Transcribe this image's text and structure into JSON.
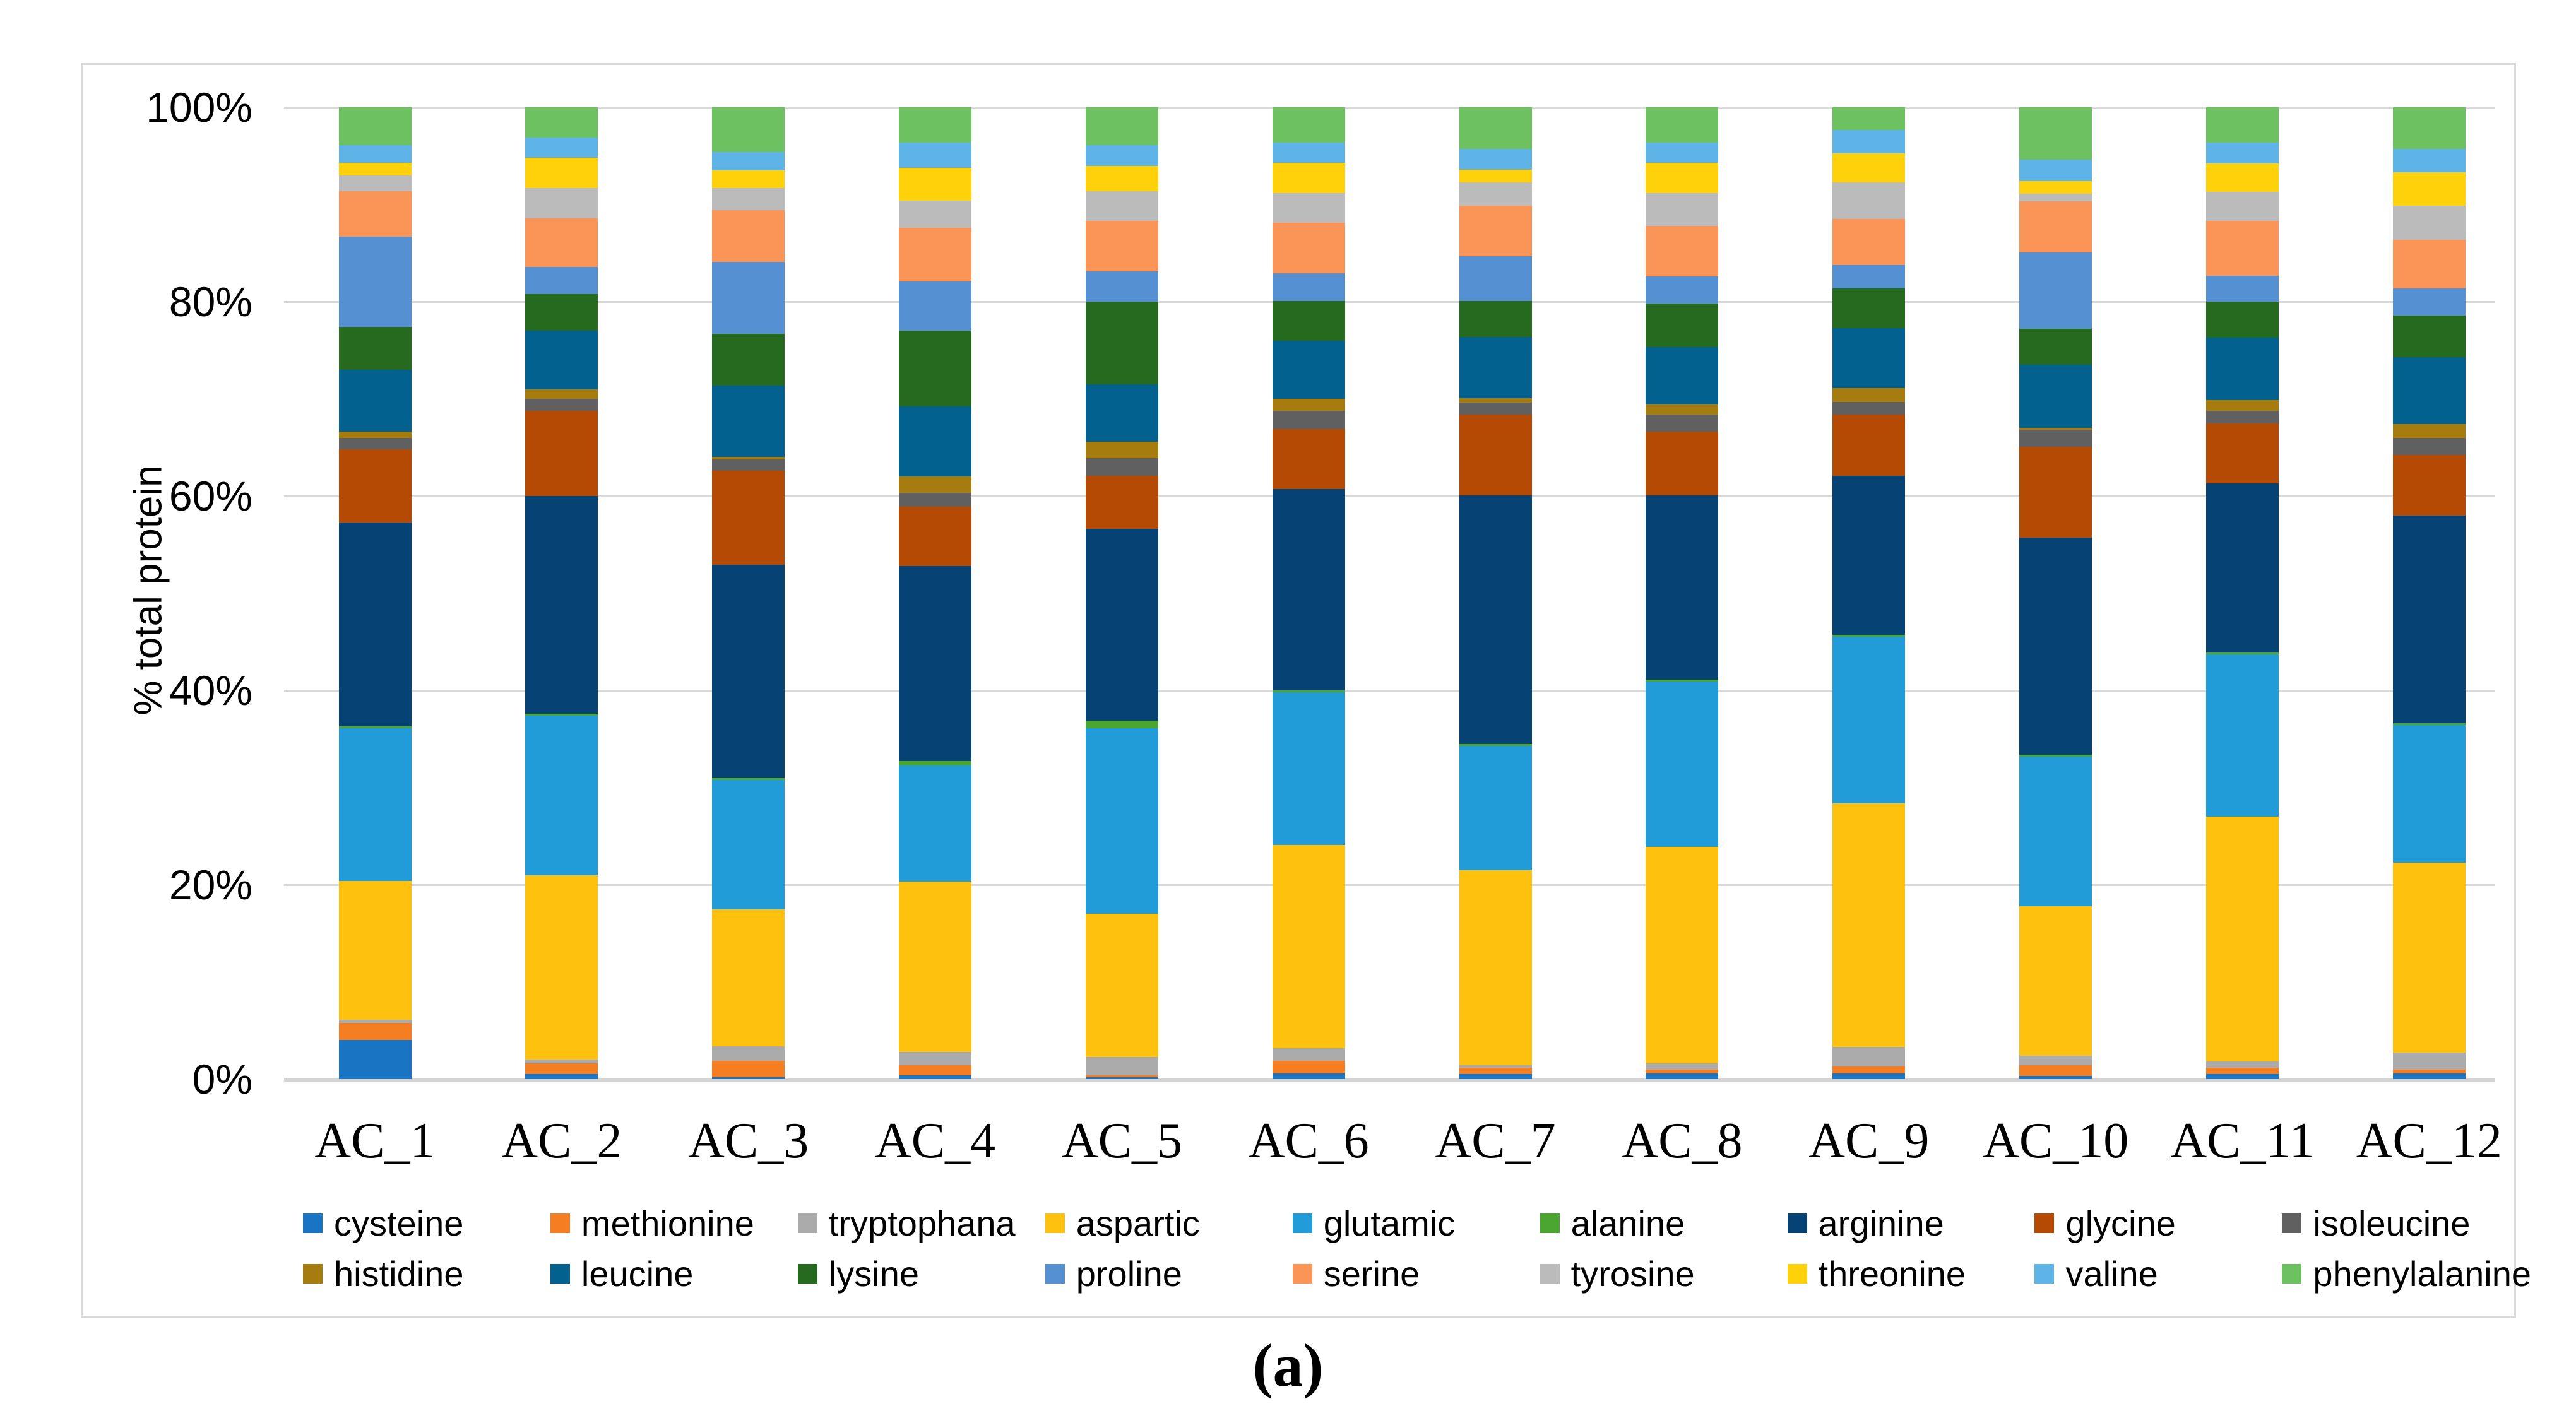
{
  "figure": {
    "caption": "(a)",
    "y_axis_title": "% total protein"
  },
  "chart_data": {
    "type": "bar",
    "stacked": true,
    "percent_stacked": true,
    "title": "",
    "xlabel": "",
    "ylabel": "% total protein",
    "ylim": [
      0,
      100
    ],
    "grid": true,
    "legend_position": "bottom",
    "yticks": [
      {
        "value": 0,
        "label": "0%"
      },
      {
        "value": 20,
        "label": "20%"
      },
      {
        "value": 40,
        "label": "40%"
      },
      {
        "value": 60,
        "label": "60%"
      },
      {
        "value": 80,
        "label": "80%"
      },
      {
        "value": 100,
        "label": "100%"
      }
    ],
    "categories": [
      "AC_1",
      "AC_2",
      "AC_3",
      "AC_4",
      "AC_5",
      "AC_6",
      "AC_7",
      "AC_8",
      "AC_9",
      "AC_10",
      "AC_11",
      "AC_12"
    ],
    "series": [
      {
        "name": "cysteine",
        "color": "#1A74C4",
        "values": [
          4.0,
          0.5,
          0.2,
          0.4,
          0.2,
          0.6,
          0.5,
          0.6,
          0.6,
          0.3,
          0.5,
          0.6
        ]
      },
      {
        "name": "methionine",
        "color": "#F57E22",
        "values": [
          1.8,
          1.1,
          1.7,
          1.0,
          0.2,
          1.3,
          0.7,
          0.4,
          0.7,
          1.1,
          0.7,
          0.4
        ]
      },
      {
        "name": "tryptophana",
        "color": "#ABABAB",
        "values": [
          0.3,
          0.4,
          1.5,
          1.4,
          1.9,
          1.3,
          0.2,
          0.6,
          2.0,
          1.0,
          0.6,
          1.7
        ]
      },
      {
        "name": "aspartic",
        "color": "#FEC10D",
        "values": [
          14.3,
          19.0,
          14.1,
          17.5,
          14.7,
          20.9,
          20.1,
          22.3,
          25.1,
          15.4,
          25.2,
          19.6
        ]
      },
      {
        "name": "glutamic",
        "color": "#219CD8",
        "values": [
          15.7,
          16.4,
          13.3,
          12.0,
          19.1,
          15.7,
          12.8,
          17.0,
          17.1,
          15.4,
          16.7,
          14.1
        ]
      },
      {
        "name": "alanine",
        "color": "#4BA531",
        "values": [
          0.2,
          0.2,
          0.2,
          0.4,
          0.8,
          0.2,
          0.2,
          0.2,
          0.2,
          0.2,
          0.2,
          0.2
        ]
      },
      {
        "name": "arginine",
        "color": "#064273",
        "values": [
          21.0,
          22.4,
          21.9,
          20.1,
          19.7,
          20.7,
          25.6,
          19.0,
          16.4,
          22.3,
          17.4,
          21.4
        ]
      },
      {
        "name": "glycine",
        "color": "#B44A04",
        "values": [
          7.5,
          8.8,
          9.7,
          6.1,
          5.5,
          6.2,
          8.3,
          6.5,
          6.3,
          9.4,
          6.2,
          6.2
        ]
      },
      {
        "name": "isoleucine",
        "color": "#606060",
        "values": [
          1.2,
          1.2,
          1.2,
          1.4,
          1.8,
          1.9,
          1.2,
          1.8,
          1.3,
          1.7,
          1.3,
          1.8
        ]
      },
      {
        "name": "histidine",
        "color": "#A57C0D",
        "values": [
          0.6,
          1.0,
          0.2,
          1.7,
          1.7,
          1.2,
          0.5,
          1.0,
          1.4,
          0.2,
          1.1,
          1.4
        ]
      },
      {
        "name": "leucine",
        "color": "#03618F",
        "values": [
          6.4,
          6.0,
          7.4,
          7.2,
          5.9,
          6.0,
          6.3,
          5.9,
          6.2,
          6.5,
          6.4,
          6.9
        ]
      },
      {
        "name": "lysine",
        "color": "#266A20",
        "values": [
          4.4,
          3.8,
          5.3,
          7.8,
          8.5,
          4.1,
          3.7,
          4.5,
          4.1,
          3.7,
          3.7,
          4.3
        ]
      },
      {
        "name": "proline",
        "color": "#5590D2",
        "values": [
          9.3,
          2.8,
          7.4,
          5.1,
          3.1,
          2.8,
          4.6,
          2.8,
          2.4,
          7.9,
          2.7,
          2.8
        ]
      },
      {
        "name": "serine",
        "color": "#FB9457",
        "values": [
          4.7,
          5.0,
          5.3,
          5.5,
          5.2,
          5.2,
          5.2,
          5.2,
          4.7,
          5.2,
          5.6,
          5.0
        ]
      },
      {
        "name": "tyrosine",
        "color": "#BBBBBB",
        "values": [
          1.6,
          3.1,
          2.3,
          2.8,
          3.1,
          3.1,
          2.4,
          3.4,
          3.8,
          0.8,
          3.0,
          3.5
        ]
      },
      {
        "name": "threonine",
        "color": "#FFD10A",
        "values": [
          1.3,
          3.1,
          1.8,
          3.4,
          2.6,
          3.1,
          1.3,
          3.1,
          3.0,
          1.3,
          2.9,
          3.4
        ]
      },
      {
        "name": "valine",
        "color": "#5EB4E7",
        "values": [
          1.8,
          2.1,
          1.9,
          2.6,
          2.1,
          2.1,
          2.1,
          2.1,
          2.4,
          2.2,
          2.2,
          2.4
        ]
      },
      {
        "name": "phenylalanine",
        "color": "#6DC161",
        "values": [
          3.9,
          3.1,
          4.6,
          3.6,
          3.9,
          3.6,
          4.3,
          3.6,
          2.3,
          5.4,
          3.6,
          4.3
        ]
      }
    ]
  }
}
